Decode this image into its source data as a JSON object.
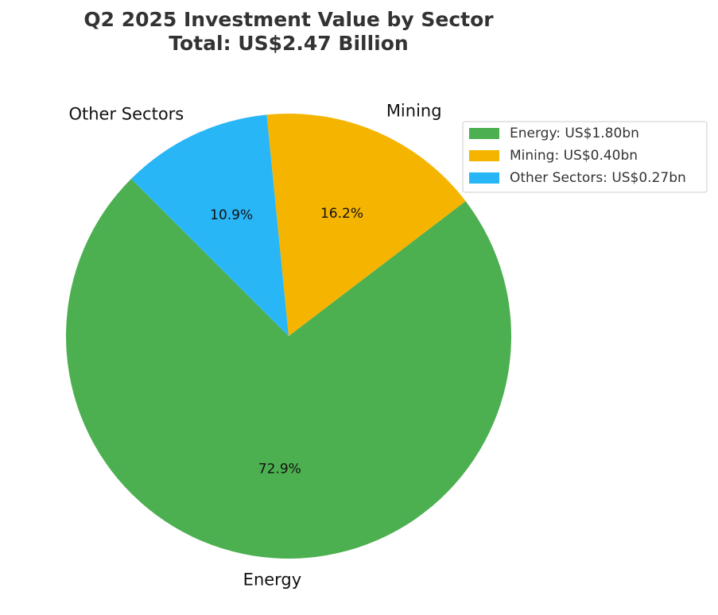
{
  "chart_data": {
    "type": "pie",
    "title": "Q2 2025 Investment Value by Sector",
    "subtitle": "Total: US$2.47 Billion",
    "start_angle_deg": 135,
    "direction": "counterclockwise",
    "legend_position": "top-right",
    "slices": [
      {
        "label": "Energy",
        "value": 1.8,
        "percent_label": "72.9%",
        "legend_label": "Energy: US$1.80bn",
        "color": "#4caf50"
      },
      {
        "label": "Mining",
        "value": 0.4,
        "percent_label": "16.2%",
        "legend_label": "Mining: US$0.40bn",
        "color": "#f5b400"
      },
      {
        "label": "Other Sectors",
        "value": 0.27,
        "percent_label": "10.9%",
        "legend_label": "Other Sectors: US$0.27bn",
        "color": "#29b6f6"
      }
    ]
  }
}
